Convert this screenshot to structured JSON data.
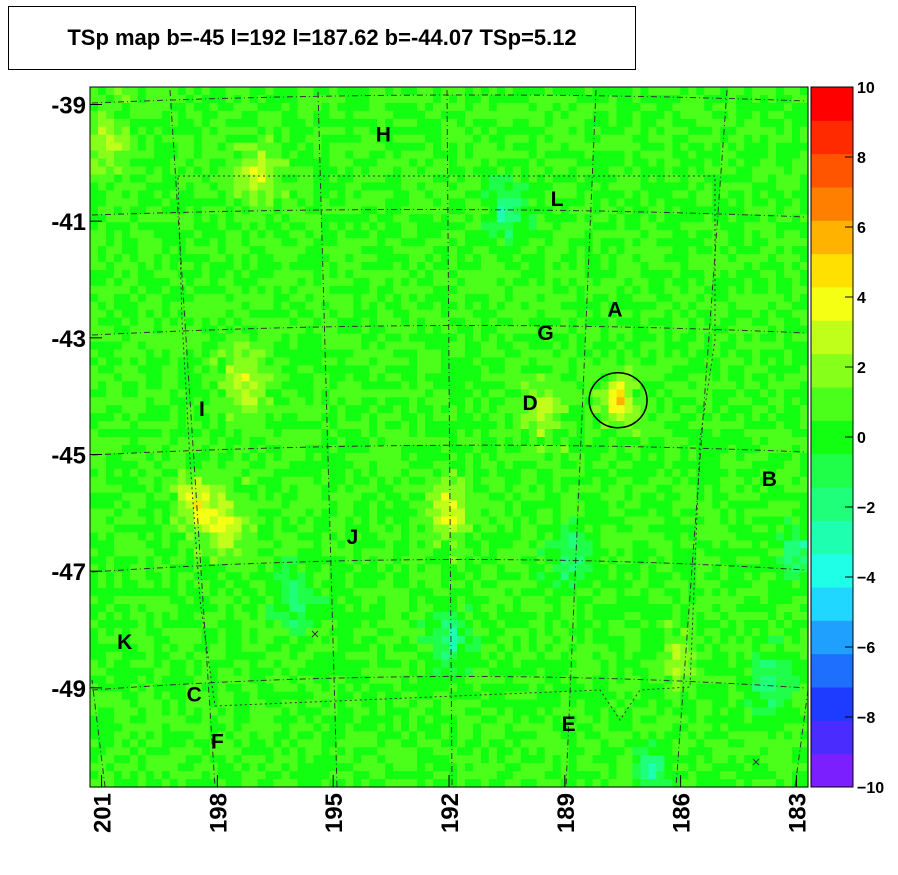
{
  "chart_data": {
    "type": "heatmap",
    "title": "TSp map b=-45 l=192 l=187.62 b=-44.07 TSp=5.12",
    "xlabel": "",
    "ylabel": "",
    "x_range": [
      201.3,
      182.7
    ],
    "y_range": [
      -50.7,
      -38.7
    ],
    "x_ticks": [
      {
        "value": 201,
        "label": "201"
      },
      {
        "value": 198,
        "label": "198"
      },
      {
        "value": 195,
        "label": "195"
      },
      {
        "value": 192,
        "label": "192"
      },
      {
        "value": 189,
        "label": "189"
      },
      {
        "value": 186,
        "label": "186"
      },
      {
        "value": 183,
        "label": "183"
      }
    ],
    "y_ticks": [
      {
        "value": -39,
        "label": "-39"
      },
      {
        "value": -41,
        "label": "-41"
      },
      {
        "value": -43,
        "label": "-43"
      },
      {
        "value": -45,
        "label": "-45"
      },
      {
        "value": -47,
        "label": "-47"
      },
      {
        "value": -49,
        "label": "-49"
      }
    ],
    "z_range": [
      -10,
      10
    ],
    "z_ticks": [
      {
        "value": 10,
        "label": "10"
      },
      {
        "value": 8,
        "label": "8"
      },
      {
        "value": 6,
        "label": "6"
      },
      {
        "value": 4,
        "label": "4"
      },
      {
        "value": 2,
        "label": "2"
      },
      {
        "value": 0,
        "label": "0"
      },
      {
        "value": -2,
        "label": "−2"
      },
      {
        "value": -4,
        "label": "−4"
      },
      {
        "value": -6,
        "label": "−6"
      },
      {
        "value": -8,
        "label": "−8"
      },
      {
        "value": -10,
        "label": "−10"
      }
    ],
    "palette": [
      "#7b1fff",
      "#4a2cff",
      "#1e3cff",
      "#1f6fff",
      "#1fa0ff",
      "#1fd7ff",
      "#1fffe8",
      "#1fffb0",
      "#1fff7a",
      "#1fff4a",
      "#12ff12",
      "#4cff1a",
      "#86ff1a",
      "#bfff1a",
      "#f4ff14",
      "#ffe000",
      "#ffb300",
      "#ff8000",
      "#ff5500",
      "#ff2a00",
      "#ff0000"
    ],
    "background_value": 0.5,
    "hotspots": [
      {
        "l": 187.62,
        "b": -44.07,
        "value": 5.1,
        "radius": 0.25
      },
      {
        "l": 192.0,
        "b": -45.9,
        "value": 3.5,
        "radius": 0.35
      },
      {
        "l": 197.9,
        "b": -46.2,
        "value": 3.5,
        "radius": 0.35
      },
      {
        "l": 197.3,
        "b": -43.8,
        "value": 3.2,
        "radius": 0.35
      },
      {
        "l": 196.9,
        "b": -40.2,
        "value": 3.0,
        "radius": 0.35
      },
      {
        "l": 200.8,
        "b": -39.6,
        "value": 3.0,
        "radius": 0.3
      },
      {
        "l": 198.6,
        "b": -45.8,
        "value": 3.5,
        "radius": 0.3
      },
      {
        "l": 189.6,
        "b": -44.3,
        "value": 2.8,
        "radius": 0.3
      },
      {
        "l": 186.0,
        "b": -48.5,
        "value": 2.6,
        "radius": 0.3
      },
      {
        "l": 190.5,
        "b": -40.8,
        "value": -2.5,
        "radius": 0.3
      },
      {
        "l": 192.0,
        "b": -48.2,
        "value": -2.2,
        "radius": 0.35
      },
      {
        "l": 188.8,
        "b": -46.8,
        "value": -2.0,
        "radius": 0.35
      },
      {
        "l": 183.7,
        "b": -48.9,
        "value": -2.0,
        "radius": 0.35
      },
      {
        "l": 182.9,
        "b": -46.7,
        "value": -2.4,
        "radius": 0.3
      },
      {
        "l": 186.8,
        "b": -50.4,
        "value": -2.3,
        "radius": 0.3
      },
      {
        "l": 196.0,
        "b": -47.5,
        "value": -1.8,
        "radius": 0.35
      }
    ],
    "circle": {
      "l": 187.62,
      "b": -44.07,
      "radius": 0.75
    },
    "annotations": [
      {
        "text": "H",
        "l": 193.7,
        "b": -39.5
      },
      {
        "text": "L",
        "l": 189.2,
        "b": -40.6
      },
      {
        "text": "A",
        "l": 187.7,
        "b": -42.5
      },
      {
        "text": "G",
        "l": 189.5,
        "b": -42.9
      },
      {
        "text": "D",
        "l": 189.9,
        "b": -44.1
      },
      {
        "text": "I",
        "l": 198.4,
        "b": -44.2
      },
      {
        "text": "B",
        "l": 183.7,
        "b": -45.4
      },
      {
        "text": "J",
        "l": 194.5,
        "b": -46.4
      },
      {
        "text": "K",
        "l": 200.4,
        "b": -48.2
      },
      {
        "text": "C",
        "l": 198.6,
        "b": -49.1
      },
      {
        "text": "E",
        "l": 188.9,
        "b": -49.6
      },
      {
        "text": "F",
        "l": 198.0,
        "b": -49.9
      }
    ]
  }
}
